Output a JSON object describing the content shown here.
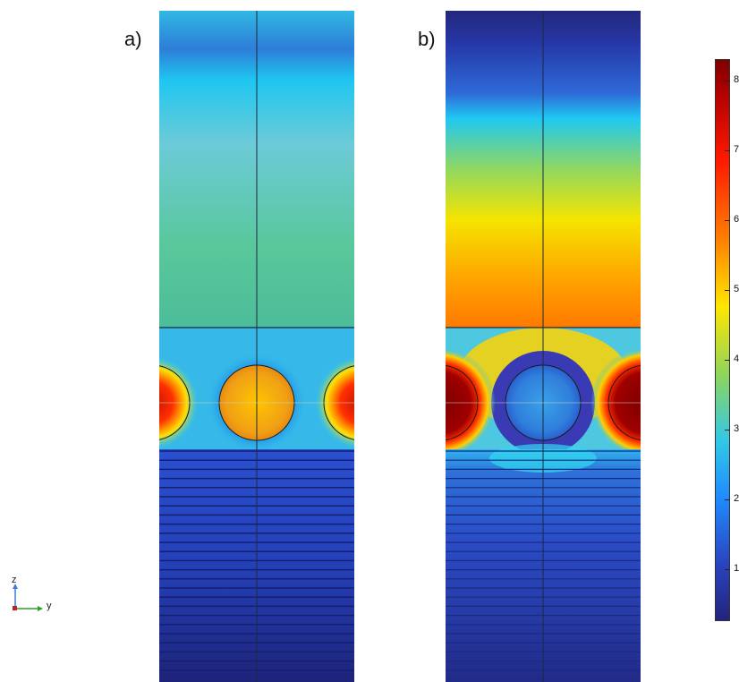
{
  "panels": {
    "a": {
      "label": "a)"
    },
    "b": {
      "label": "b)"
    }
  },
  "colorbar": {
    "tick_labels": [
      "8",
      "7",
      "6",
      "5",
      "4",
      "3",
      "2",
      "1"
    ],
    "colors": [
      "#7f0000",
      "#ff1a00",
      "#ff8000",
      "#ffe600",
      "#8fd55a",
      "#32c8e6",
      "#1f8cff",
      "#23237d"
    ]
  },
  "axes": {
    "z_label": "z",
    "y_label": "y"
  }
}
